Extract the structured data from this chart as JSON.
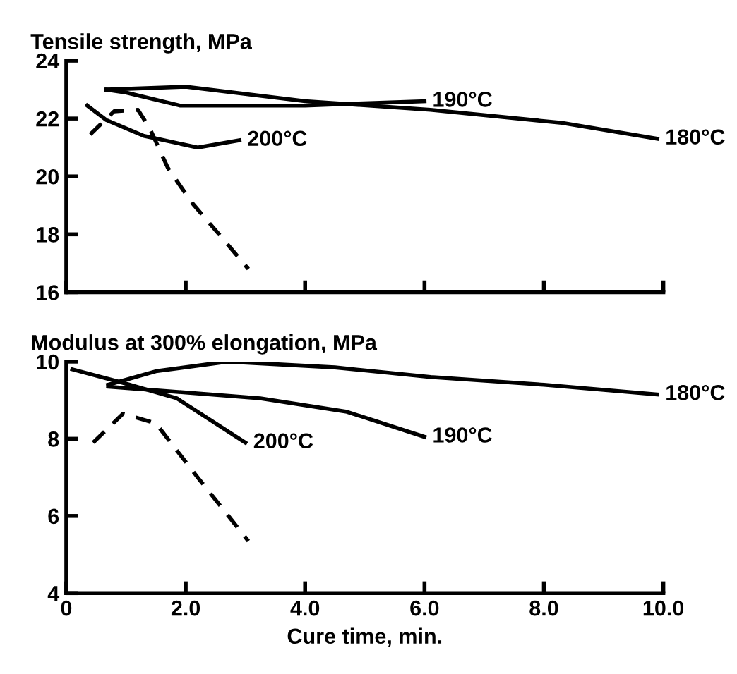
{
  "chart_data": [
    {
      "type": "line",
      "title": "Tensile strength, MPa",
      "xlim": [
        0,
        10
      ],
      "ylim": [
        16,
        24
      ],
      "yticks": [
        16,
        18,
        20,
        22,
        24
      ],
      "xticks": [
        0,
        2,
        4,
        6,
        8,
        10
      ],
      "tick_labels": "y",
      "grid": false,
      "legend": false,
      "series": [
        {
          "name": "180°C",
          "color": "#000000",
          "line_style": "solid",
          "x": [
            0.67,
            2.0,
            4.0,
            6.1,
            8.3,
            9.9
          ],
          "values": [
            23.0,
            23.1,
            22.6,
            22.3,
            21.85,
            21.3
          ]
        },
        {
          "name": "190°C",
          "color": "#000000",
          "line_style": "solid",
          "x": [
            0.67,
            1.0,
            1.9,
            4.0,
            6.0
          ],
          "values": [
            23.0,
            22.9,
            22.45,
            22.45,
            22.6
          ]
        },
        {
          "name": "200°C",
          "color": "#000000",
          "line_style": "solid",
          "x": [
            0.35,
            0.67,
            1.3,
            2.2,
            2.9
          ],
          "values": [
            22.45,
            21.95,
            21.4,
            21.0,
            21.25
          ]
        },
        {
          "color": "#000000",
          "line_style": "dashed",
          "x": [
            0.4,
            0.8,
            1.2,
            1.4,
            1.7,
            2.1,
            2.6,
            3.05
          ],
          "values": [
            21.45,
            22.25,
            22.3,
            21.65,
            20.3,
            19.1,
            17.9,
            16.8
          ]
        }
      ]
    },
    {
      "type": "line",
      "title": "Modulus at 300% elongation, MPa",
      "xlabel": "Cure time, min.",
      "xlim": [
        0,
        10
      ],
      "ylim": [
        4,
        10
      ],
      "yticks": [
        4,
        6,
        8,
        10
      ],
      "xticks": [
        0,
        {
          "value": 2,
          "label": "2.0"
        },
        {
          "value": 4,
          "label": "4.0"
        },
        {
          "value": 6,
          "label": "6.0"
        },
        {
          "value": 8,
          "label": "8.0"
        },
        {
          "value": 10,
          "label": "10.0"
        }
      ],
      "grid": false,
      "legend": false,
      "series": [
        {
          "name": "180°C",
          "color": "#000000",
          "line_style": "solid",
          "x": [
            0.7,
            1.5,
            2.7,
            4.5,
            6.1,
            8.0,
            9.9
          ],
          "values": [
            9.4,
            9.75,
            10.0,
            9.85,
            9.6,
            9.4,
            9.15
          ]
        },
        {
          "name": "190°C",
          "color": "#000000",
          "line_style": "solid",
          "x": [
            0.7,
            2.0,
            3.25,
            4.7,
            6.0
          ],
          "values": [
            9.35,
            9.2,
            9.05,
            8.7,
            8.05
          ]
        },
        {
          "name": "200°C",
          "color": "#000000",
          "line_style": "solid",
          "x": [
            0.1,
            0.95,
            1.85,
            3.0
          ],
          "values": [
            9.8,
            9.45,
            9.05,
            7.9
          ]
        },
        {
          "color": "#000000",
          "line_style": "dashed",
          "x": [
            0.45,
            0.95,
            1.5,
            2.2,
            3.05
          ],
          "values": [
            7.9,
            8.65,
            8.4,
            7.0,
            5.35
          ]
        }
      ]
    }
  ]
}
